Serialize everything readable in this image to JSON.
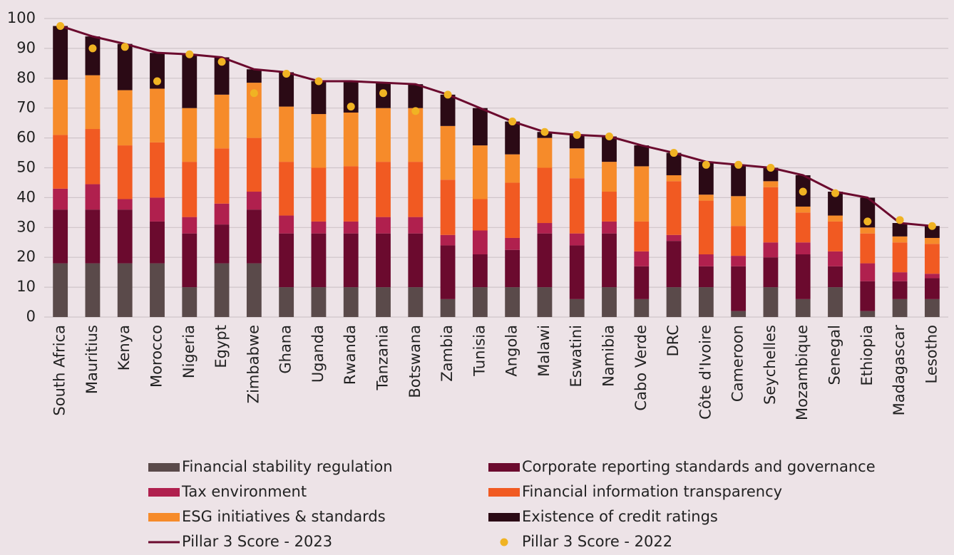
{
  "chart_data": {
    "type": "bar",
    "stacked": true,
    "categories": [
      "South Africa",
      "Mauritius",
      "Kenya",
      "Morocco",
      "Nigeria",
      "Egypt",
      "Zimbabwe",
      "Ghana",
      "Uganda",
      "Rwanda",
      "Tanzania",
      "Botswana",
      "Zambia",
      "Tunisia",
      "Angola",
      "Malawi",
      "Eswatini",
      "Namibia",
      "Cabo Verde",
      "DRC",
      "Côte d'Ivoire",
      "Cameroon",
      "Seychelles",
      "Mozambique",
      "Senegal",
      "Ethiopia",
      "Madagascar",
      "Lesotho"
    ],
    "series": [
      {
        "name": "Financial stability regulation",
        "type": "bar",
        "color": "#5a4a4a",
        "values": [
          18,
          18,
          18,
          18,
          10,
          18,
          18,
          10,
          10,
          10,
          10,
          10,
          6,
          10,
          10,
          10,
          6,
          10,
          6,
          10,
          10,
          2,
          10,
          6,
          10,
          2,
          6,
          6
        ]
      },
      {
        "name": "Corporate reporting standards and governance",
        "type": "bar",
        "color": "#6b0a2e",
        "values": [
          18,
          18,
          18,
          14,
          18,
          13,
          18,
          18,
          18,
          18,
          18,
          18,
          18,
          11,
          12.5,
          18,
          18,
          18,
          11,
          15.5,
          7,
          15,
          10,
          15,
          7,
          10,
          6,
          7
        ]
      },
      {
        "name": "Tax environment",
        "type": "bar",
        "color": "#b0204e",
        "values": [
          7,
          8.5,
          3.5,
          8,
          5.5,
          7,
          6,
          6,
          4,
          4,
          5.5,
          5.5,
          3.5,
          8,
          4,
          3.5,
          4,
          4,
          5,
          2,
          4,
          3.5,
          5,
          4,
          5,
          6,
          3,
          1.5
        ]
      },
      {
        "name": "Financial information transparency",
        "type": "bar",
        "color": "#f15a22",
        "values": [
          18,
          18.5,
          18,
          18.5,
          18.5,
          18.5,
          18,
          18,
          18,
          18.5,
          18.5,
          18.5,
          18.5,
          10.5,
          18.5,
          18.5,
          18.5,
          10,
          10,
          18,
          18,
          10,
          18.5,
          10,
          10,
          10,
          10,
          10
        ]
      },
      {
        "name": "ESG initiatives & standards",
        "type": "bar",
        "color": "#f68b2a",
        "values": [
          18.5,
          18,
          18.5,
          18,
          18,
          18,
          18.5,
          18.5,
          18,
          18,
          18,
          18,
          18,
          18,
          9.5,
          10,
          10,
          10,
          18.5,
          2,
          2,
          10,
          2,
          2,
          2,
          2,
          2,
          2
        ]
      },
      {
        "name": "Existence of credit ratings",
        "type": "bar",
        "color": "#2b0a15",
        "values": [
          18,
          13,
          15.5,
          12,
          18,
          12.5,
          4.5,
          11.5,
          11,
          10.5,
          8.5,
          8,
          10.5,
          12.5,
          11,
          2,
          4.5,
          8.5,
          7,
          7.5,
          11,
          10.5,
          4.5,
          10.5,
          8,
          10,
          4.5,
          4
        ]
      },
      {
        "name": "Pillar 3 Score - 2023",
        "type": "line",
        "color": "#6b0a2e",
        "values": [
          97.5,
          94,
          91.5,
          88.5,
          88,
          87,
          83,
          82,
          79,
          79,
          78.5,
          78,
          74.5,
          70,
          65.5,
          62,
          61,
          60.5,
          57.5,
          55,
          52,
          51,
          50,
          47.5,
          42,
          40,
          31.5,
          30.5
        ]
      },
      {
        "name": "Pillar 3 Score - 2022",
        "type": "scatter",
        "color": "#f0b323",
        "values": [
          97.5,
          90,
          90.5,
          79,
          88,
          85.5,
          75,
          81.5,
          79,
          70.5,
          75,
          69,
          74.5,
          null,
          65.5,
          62,
          61,
          60.5,
          null,
          55,
          51,
          51,
          50,
          42,
          41.5,
          32,
          32.5,
          30.5
        ]
      }
    ],
    "ylim": [
      0,
      100
    ],
    "yticks": [
      0,
      10,
      20,
      30,
      40,
      50,
      60,
      70,
      80,
      90,
      100
    ],
    "grid": true
  }
}
